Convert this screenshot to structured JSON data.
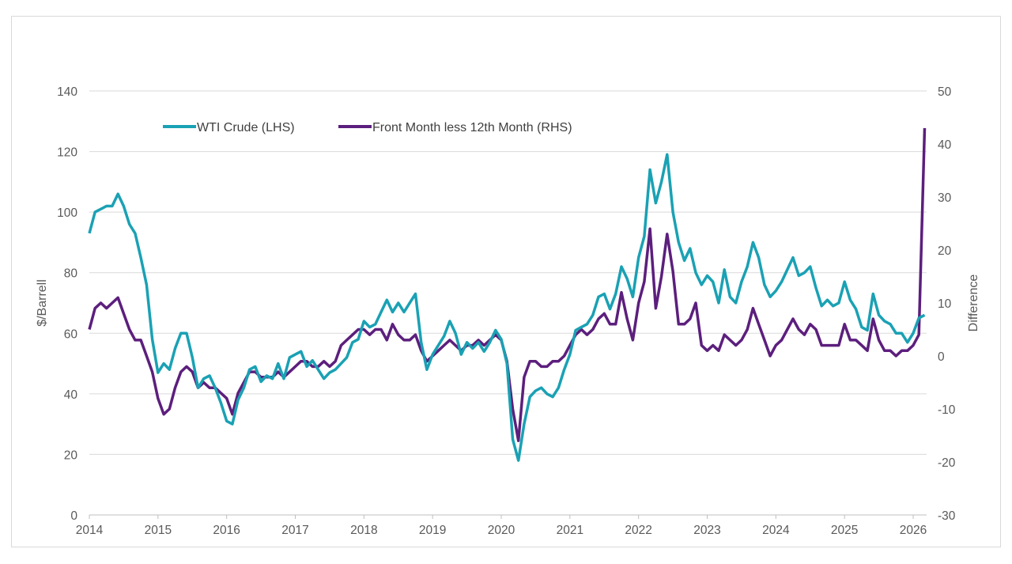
{
  "chart_data": {
    "type": "line",
    "title": "",
    "xlabel": "",
    "ylabel": "$/Barrell",
    "y2label": "Difference",
    "xlim": [
      2014,
      2026.2
    ],
    "ylim": [
      0,
      140
    ],
    "y2lim": [
      -30,
      50
    ],
    "x_ticks": [
      "2014",
      "2015",
      "2016",
      "2017",
      "2018",
      "2019",
      "2020",
      "2021",
      "2022",
      "2023",
      "2024",
      "2025",
      "2026"
    ],
    "y_ticks": [
      "0",
      "20",
      "40",
      "60",
      "80",
      "100",
      "120",
      "140"
    ],
    "y2_ticks": [
      "-30",
      "-20",
      "-10",
      "0",
      "10",
      "20",
      "30",
      "40",
      "50"
    ],
    "grid": "horizontal",
    "legend": "top",
    "colors": {
      "wti": "#1aa1b4",
      "spread": "#5c1f7d"
    },
    "series": [
      {
        "name": "WTI Crude (LHS)",
        "axis": "left",
        "values": [
          93,
          100,
          101,
          102,
          102,
          106,
          102,
          96,
          93,
          85,
          76,
          58,
          47,
          50,
          48,
          55,
          60,
          60,
          52,
          42,
          45,
          46,
          42,
          37,
          31,
          30,
          38,
          42,
          48,
          49,
          44,
          46,
          45,
          50,
          45,
          52,
          53,
          54,
          49,
          51,
          48,
          45,
          47,
          48,
          50,
          52,
          57,
          58,
          64,
          62,
          63,
          67,
          71,
          67,
          70,
          67,
          70,
          73,
          57,
          48,
          53,
          56,
          59,
          64,
          60,
          53,
          57,
          55,
          57,
          54,
          57,
          61,
          58,
          50,
          25,
          18,
          30,
          39,
          41,
          42,
          40,
          39,
          42,
          48,
          53,
          61,
          62,
          63,
          66,
          72,
          73,
          68,
          73,
          82,
          78,
          72,
          85,
          92,
          114,
          103,
          110,
          119,
          100,
          90,
          84,
          88,
          80,
          76,
          79,
          77,
          70,
          81,
          72,
          70,
          77,
          82,
          90,
          85,
          76,
          72,
          74,
          77,
          81,
          85,
          79,
          80,
          82,
          75,
          69,
          71,
          69,
          70,
          77,
          71,
          68,
          62,
          61,
          73,
          66,
          64,
          63,
          60,
          60,
          57,
          60,
          65,
          66
        ]
      },
      {
        "name": "Front Month less 12th Month (RHS)",
        "axis": "right",
        "values": [
          5,
          9,
          10,
          9,
          10,
          11,
          8,
          5,
          3,
          3,
          0,
          -3,
          -8,
          -11,
          -10,
          -6,
          -3,
          -2,
          -3,
          -6,
          -5,
          -6,
          -6,
          -7,
          -8,
          -11,
          -7,
          -5,
          -3,
          -3,
          -4,
          -4,
          -4,
          -3,
          -4,
          -3,
          -2,
          -1,
          -1,
          -2,
          -2,
          -1,
          -2,
          -1,
          2,
          3,
          4,
          5,
          5,
          4,
          5,
          5,
          3,
          6,
          4,
          3,
          3,
          4,
          1,
          -1,
          0,
          1,
          2,
          3,
          2,
          1,
          2,
          2,
          3,
          2,
          3,
          4,
          3,
          -1,
          -10,
          -16,
          -4,
          -1,
          -1,
          -2,
          -2,
          -1,
          -1,
          0,
          2,
          4,
          5,
          4,
          5,
          7,
          8,
          6,
          6,
          12,
          7,
          3,
          10,
          14,
          24,
          9,
          15,
          23,
          16,
          6,
          6,
          7,
          10,
          2,
          1,
          2,
          1,
          4,
          3,
          2,
          3,
          5,
          9,
          6,
          3,
          0,
          2,
          3,
          5,
          7,
          5,
          4,
          6,
          5,
          2,
          2,
          2,
          2,
          6,
          3,
          3,
          2,
          1,
          7,
          3,
          1,
          1,
          0,
          1,
          1,
          2,
          4,
          43
        ]
      }
    ]
  }
}
